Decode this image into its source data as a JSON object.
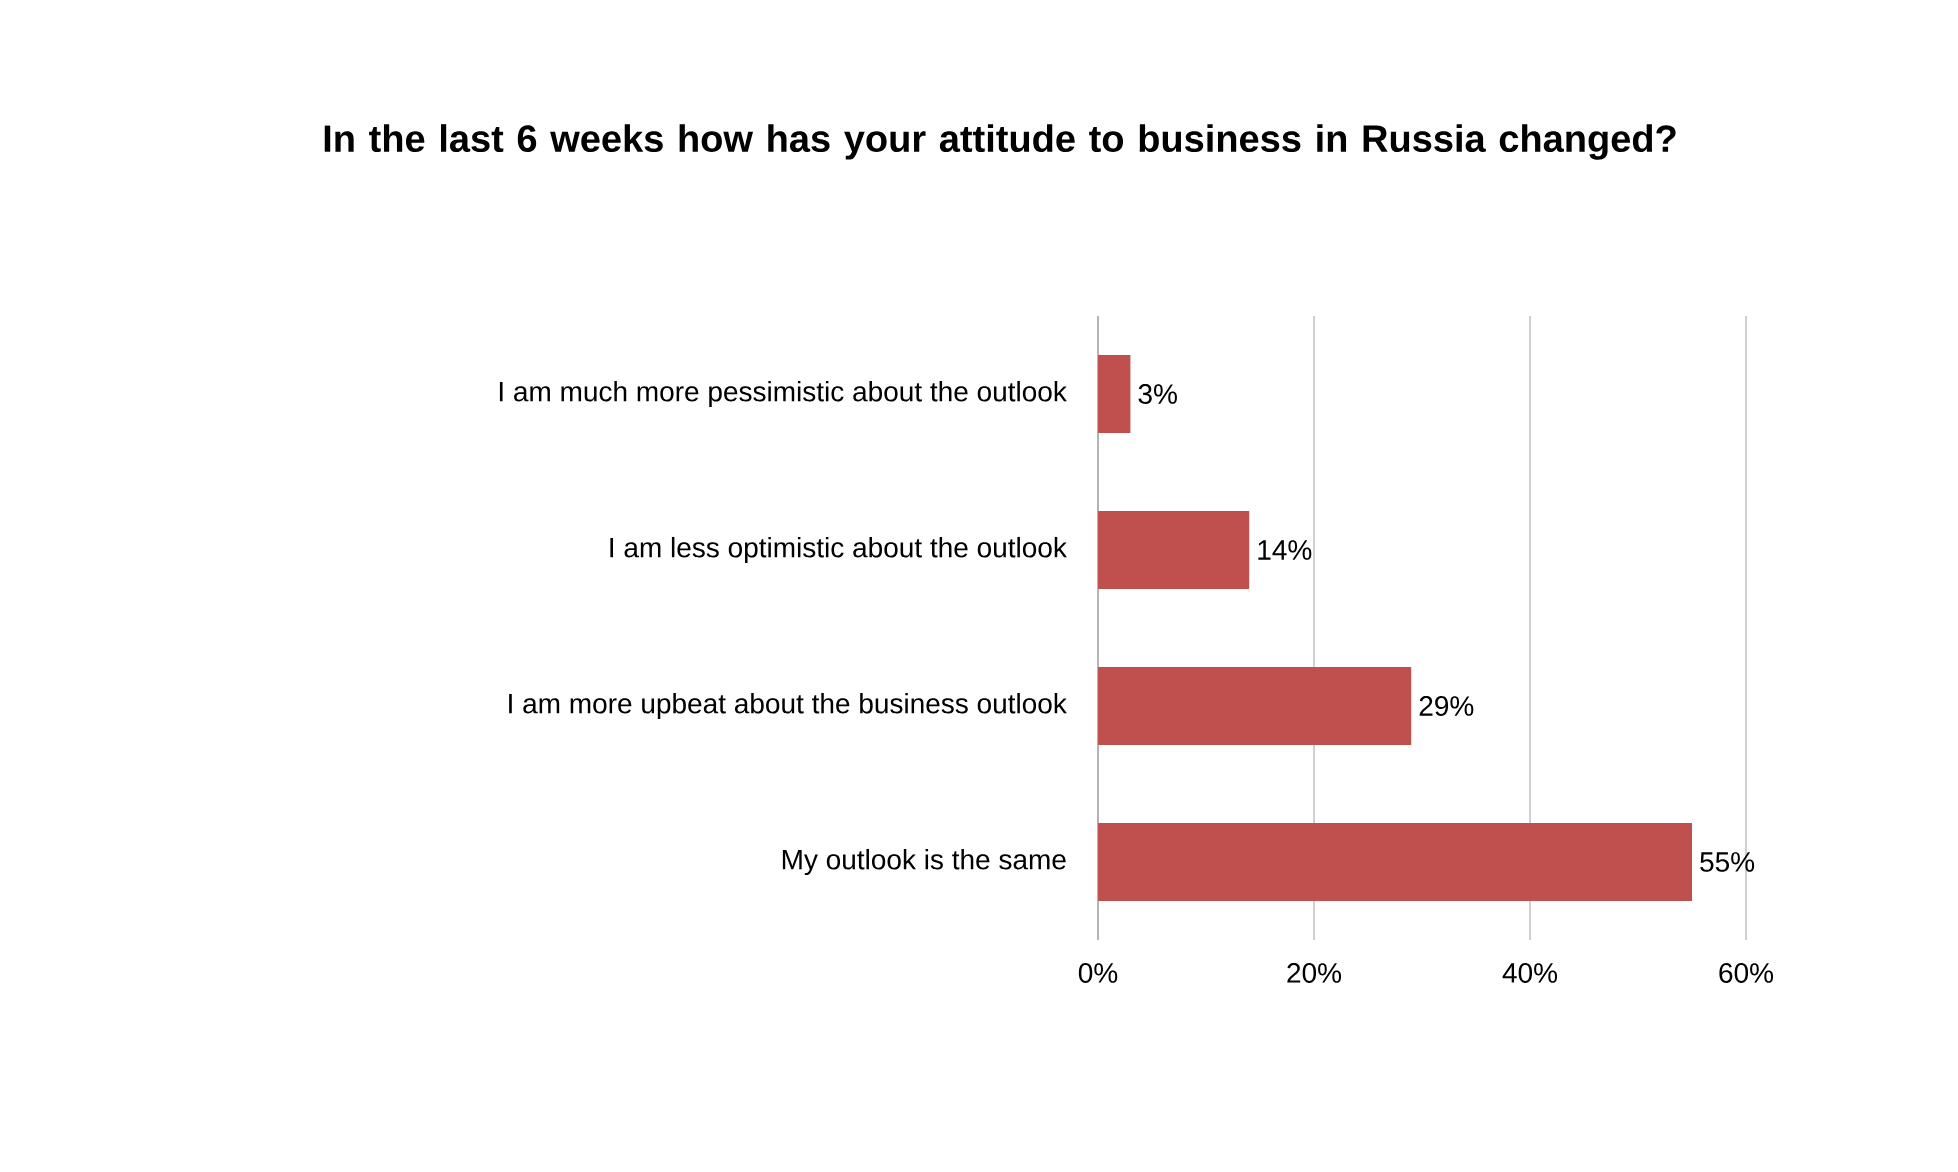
{
  "chart_data": {
    "type": "bar",
    "orientation": "horizontal",
    "title": "In the last 6 weeks how has your attitude to business in Russia changed?",
    "categories": [
      "I am much more pessimistic about the outlook",
      "I am less optimistic about the outlook",
      "I am more upbeat about the business outlook",
      "My outlook is the same"
    ],
    "values": [
      3,
      14,
      29,
      55
    ],
    "value_labels": [
      "3%",
      "14%",
      "29%",
      "55%"
    ],
    "color": "#c0504d",
    "xlim": [
      0,
      60
    ],
    "xticks": [
      {
        "value": 0,
        "label": "0%"
      },
      {
        "value": 20,
        "label": "20%"
      },
      {
        "value": 40,
        "label": "40%"
      },
      {
        "value": 60,
        "label": "60%"
      }
    ],
    "grid": "x"
  }
}
